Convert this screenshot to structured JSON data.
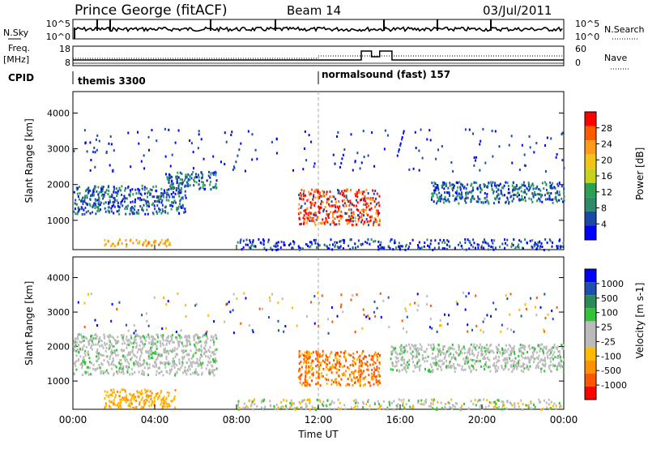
{
  "header": {
    "station": "Prince George (fitACF)",
    "beam": "Beam 14",
    "date": "03/Jul/2011"
  },
  "strips": {
    "nsky_label": "N.Sky",
    "nsearch_label": "N.Search",
    "nsky_ticks": [
      "10^5",
      "10^0"
    ],
    "nsearch_ticks": [
      "10^5",
      "10^0"
    ],
    "freq_label_1": "Freq.",
    "freq_label_2": "[MHz]",
    "freq_ticks": [
      "18",
      "8"
    ],
    "nave_label": "Nave",
    "nave_ticks": [
      "60",
      "0"
    ],
    "cpid_label": "CPID",
    "cpid_segments": [
      {
        "label": "themis 3300",
        "start_hour": 0,
        "end_hour": 12
      },
      {
        "label": "normalsound (fast) 157",
        "start_hour": 12,
        "end_hour": 24
      }
    ]
  },
  "panels": {
    "power": {
      "ylabel": "Slant Range [km]",
      "colorbar_label": "Power [dB]",
      "colorbar_ticks": [
        "28",
        "24",
        "20",
        "16",
        "12",
        "8",
        "4"
      ],
      "colors": [
        "#ff0000",
        "#ff5a00",
        "#ff9a1a",
        "#f2c41a",
        "#c8d21a",
        "#2aa050",
        "#2f8a6a",
        "#1a4aa8",
        "#0000ff"
      ]
    },
    "velocity": {
      "ylabel": "Slant Range [km]",
      "colorbar_label": "Velocity [m s-1]",
      "colorbar_ticks": [
        "1000",
        "500",
        "100",
        "25",
        "-25",
        "-100",
        "-500",
        "-1000"
      ],
      "colors": [
        "#0000ff",
        "#1f4fb0",
        "#2a8a5a",
        "#33c23a",
        "#bbbbbb",
        "#bbbbbb",
        "#ffbb00",
        "#ff9000",
        "#ff5500",
        "#ff0000"
      ]
    },
    "yticks": [
      "4000",
      "3000",
      "2000",
      "1000"
    ]
  },
  "xaxis": {
    "label": "Time UT",
    "ticks": [
      "00:00",
      "04:00",
      "08:00",
      "12:00",
      "16:00",
      "20:00",
      "00:00"
    ]
  },
  "chart_data": {
    "type": "heatmap",
    "title": "Prince George (fitACF)",
    "xlabel": "Time UT",
    "ylabel": "Slant Range [km]",
    "xlim_hours": [
      0,
      24
    ],
    "ylim_km": [
      180,
      4600
    ],
    "power_clusters": [
      {
        "t0": 0.0,
        "t1": 5.5,
        "r0": 1200,
        "r1": 2000,
        "level": "low-mid"
      },
      {
        "t0": 1.5,
        "t1": 4.8,
        "r0": 300,
        "r1": 500,
        "level": "mid-high"
      },
      {
        "t0": 4.5,
        "t1": 7.0,
        "r0": 1900,
        "r1": 2400,
        "level": "low-mid"
      },
      {
        "t0": 11.0,
        "t1": 15.0,
        "r0": 900,
        "r1": 1900,
        "level": "high"
      },
      {
        "t0": 17.5,
        "t1": 24.0,
        "r0": 1500,
        "r1": 2100,
        "level": "low-mid"
      }
    ],
    "velocity_clusters": [
      {
        "t0": 0.0,
        "t1": 7.0,
        "r0": 1200,
        "r1": 2400,
        "level": "near-zero"
      },
      {
        "t0": 1.5,
        "t1": 5.0,
        "r0": 250,
        "r1": 800,
        "level": "-100"
      },
      {
        "t0": 11.0,
        "t1": 15.0,
        "r0": 900,
        "r1": 1900,
        "level": "-100 to -500"
      },
      {
        "t0": 15.5,
        "t1": 24.0,
        "r0": 1300,
        "r1": 2100,
        "level": "near-zero"
      }
    ]
  }
}
